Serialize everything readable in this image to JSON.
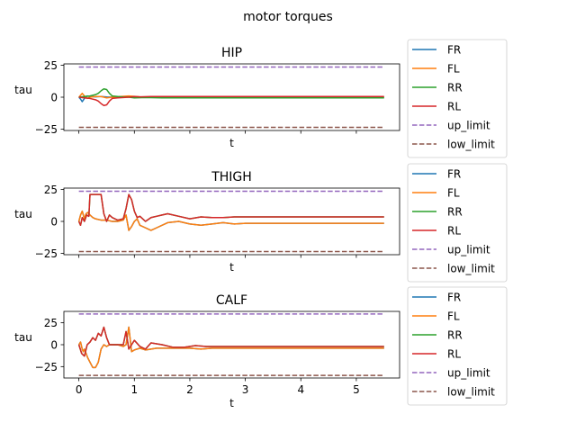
{
  "chart_data": {
    "suptitle": "motor torques",
    "legend_placement": "right of each panel",
    "legend_entries": [
      "FR",
      "FL",
      "RR",
      "RL",
      "up_limit",
      "low_limit"
    ],
    "colors": {
      "FR": "#1f77b4",
      "FL": "#ff7f0e",
      "RR": "#2ca02c",
      "RL": "#d62728",
      "up_limit": "#9467bd",
      "low_limit": "#8c564b"
    },
    "subplots": [
      {
        "type": "line",
        "title": "HIP",
        "xlabel": "t",
        "ylabel": "tau",
        "xlim": [
          -0.27,
          5.78
        ],
        "ylim": [
          -26,
          26
        ],
        "xticks": [
          0,
          1,
          2,
          3,
          4,
          5
        ],
        "show_xticklabels": false,
        "yticks": [
          -25,
          0,
          25
        ],
        "limits": {
          "up_limit": 23.5,
          "low_limit": -23.5
        },
        "series": [
          {
            "name": "FR",
            "x": [
              0,
              0.03,
              0.06,
              0.1,
              0.15,
              0.2,
              0.3,
              0.4,
              0.5,
              0.6,
              0.75,
              0.9,
              1.1,
              1.5,
              2,
              3,
              4,
              5,
              5.5
            ],
            "y": [
              0,
              -1.5,
              -3.5,
              -1,
              1,
              0.5,
              0.3,
              0.5,
              0.2,
              0.1,
              0.3,
              0.2,
              0,
              0,
              0,
              0,
              0,
              0,
              0
            ]
          },
          {
            "name": "FL",
            "x": [
              0,
              0.03,
              0.06,
              0.1,
              0.15,
              0.2,
              0.3,
              0.4,
              0.5,
              0.6,
              0.75,
              0.9,
              1.1,
              1.5,
              2,
              3,
              4,
              5,
              5.5
            ],
            "y": [
              0,
              1.5,
              3,
              1,
              -1,
              0,
              0.5,
              0.5,
              -0.5,
              0,
              0.5,
              1,
              0.3,
              0,
              0,
              0,
              0,
              0,
              0
            ]
          },
          {
            "name": "RR",
            "x": [
              0,
              0.1,
              0.2,
              0.3,
              0.35,
              0.4,
              0.45,
              0.5,
              0.55,
              0.6,
              0.7,
              0.8,
              0.9,
              1.0,
              1.2,
              1.5,
              2,
              3,
              4,
              5,
              5.5
            ],
            "y": [
              0,
              0.5,
              1,
              2,
              3,
              5,
              6.5,
              6,
              3,
              1,
              0.5,
              0.2,
              0,
              -0.5,
              -0.3,
              -0.5,
              -0.5,
              -0.5,
              -0.5,
              -0.5,
              -0.5
            ]
          },
          {
            "name": "RL",
            "x": [
              0,
              0.1,
              0.2,
              0.3,
              0.35,
              0.4,
              0.45,
              0.5,
              0.55,
              0.6,
              0.7,
              0.8,
              0.9,
              1.0,
              1.1,
              1.3,
              1.5,
              2,
              3,
              4,
              5,
              5.5
            ],
            "y": [
              0,
              -0.5,
              -1,
              -2,
              -3,
              -5,
              -6.5,
              -6,
              -3,
              -1,
              -0.5,
              -0.3,
              0,
              0.5,
              0.3,
              0.5,
              0.5,
              0.5,
              0.5,
              0.5,
              0.5,
              0.5
            ]
          },
          {
            "name": "up_limit",
            "x": [
              0,
              5.5
            ],
            "y": [
              23.5,
              23.5
            ],
            "dashed": true
          },
          {
            "name": "low_limit",
            "x": [
              0,
              5.5
            ],
            "y": [
              -23.5,
              -23.5
            ],
            "dashed": true
          }
        ]
      },
      {
        "type": "line",
        "title": "THIGH",
        "xlabel": "t",
        "ylabel": "tau",
        "xlim": [
          -0.27,
          5.78
        ],
        "ylim": [
          -26,
          26
        ],
        "xticks": [
          0,
          1,
          2,
          3,
          4,
          5
        ],
        "show_xticklabels": false,
        "yticks": [
          -25,
          0,
          25
        ],
        "limits": {
          "up_limit": 23.5,
          "low_limit": -23.5
        },
        "series": [
          {
            "name": "FR",
            "x": [
              0,
              0.03,
              0.06,
              0.1,
              0.13,
              0.16,
              0.2,
              0.25,
              0.3,
              0.4,
              0.5,
              0.6,
              0.7,
              0.8,
              0.85,
              0.9,
              0.95,
              1.0,
              1.05,
              1.1,
              1.2,
              1.3,
              1.4,
              1.6,
              1.8,
              2.0,
              2.2,
              2.4,
              2.6,
              2.8,
              3.0,
              3.2,
              3.5,
              4,
              4.5,
              5,
              5.5
            ],
            "y": [
              0,
              5,
              8,
              2,
              6,
              7,
              5,
              3,
              2,
              1,
              1,
              0,
              0,
              1,
              5,
              -7,
              -4,
              0,
              2,
              -3,
              -5,
              -7,
              -5,
              -1,
              0,
              -2,
              -3,
              -2,
              -1,
              -2,
              -1.5,
              -1.5,
              -1.5,
              -1.5,
              -1.5,
              -1.5,
              -1.5
            ]
          },
          {
            "name": "FL",
            "x": [
              0,
              0.03,
              0.06,
              0.1,
              0.13,
              0.16,
              0.2,
              0.25,
              0.3,
              0.4,
              0.5,
              0.6,
              0.7,
              0.8,
              0.85,
              0.9,
              0.95,
              1.0,
              1.05,
              1.1,
              1.2,
              1.3,
              1.4,
              1.6,
              1.8,
              2.0,
              2.2,
              2.4,
              2.6,
              2.8,
              3.0,
              3.2,
              3.5,
              4,
              4.5,
              5,
              5.5
            ],
            "y": [
              0,
              5,
              8,
              2,
              6,
              7,
              5,
              3,
              2,
              1,
              1,
              0,
              0,
              1,
              5,
              -7,
              -4,
              0,
              2,
              -3,
              -5,
              -7,
              -5,
              -1,
              0,
              -2,
              -3,
              -2,
              -1,
              -2,
              -1.5,
              -1.5,
              -1.5,
              -1.5,
              -1.5,
              -1.5,
              -1.5
            ]
          },
          {
            "name": "RR",
            "x": [
              0,
              0.03,
              0.06,
              0.1,
              0.14,
              0.18,
              0.2,
              0.4,
              0.45,
              0.5,
              0.55,
              0.6,
              0.65,
              0.7,
              0.8,
              0.85,
              0.9,
              0.95,
              1.0,
              1.05,
              1.1,
              1.2,
              1.3,
              1.4,
              1.5,
              1.6,
              1.8,
              2.0,
              2.2,
              2.4,
              2.6,
              2.8,
              3.0,
              3.5,
              4,
              5,
              5.5
            ],
            "y": [
              0,
              -3,
              3,
              0,
              5,
              4,
              21,
              21,
              6,
              0,
              5,
              3,
              2,
              1,
              2,
              10,
              21,
              17,
              8,
              3,
              4,
              0,
              3,
              4,
              5,
              6,
              4,
              2,
              3.5,
              3,
              3,
              3.5,
              3.5,
              3.5,
              3.5,
              3.5,
              3.5
            ]
          },
          {
            "name": "RL",
            "x": [
              0,
              0.03,
              0.06,
              0.1,
              0.14,
              0.18,
              0.2,
              0.4,
              0.45,
              0.5,
              0.55,
              0.6,
              0.65,
              0.7,
              0.8,
              0.85,
              0.9,
              0.95,
              1.0,
              1.05,
              1.1,
              1.2,
              1.3,
              1.4,
              1.5,
              1.6,
              1.8,
              2.0,
              2.2,
              2.4,
              2.6,
              2.8,
              3.0,
              3.5,
              4,
              5,
              5.5
            ],
            "y": [
              0,
              -3,
              3,
              0,
              5,
              4,
              21,
              21,
              6,
              0,
              5,
              3,
              2,
              1,
              2,
              10,
              21,
              17,
              8,
              3,
              4,
              0,
              3,
              4,
              5,
              6,
              4,
              2,
              3.5,
              3,
              3,
              3.5,
              3.5,
              3.5,
              3.5,
              3.5,
              3.5
            ]
          },
          {
            "name": "up_limit",
            "x": [
              0,
              5.5
            ],
            "y": [
              23.5,
              23.5
            ],
            "dashed": true
          },
          {
            "name": "low_limit",
            "x": [
              0,
              5.5
            ],
            "y": [
              -23.5,
              -23.5
            ],
            "dashed": true
          }
        ]
      },
      {
        "type": "line",
        "title": "CALF",
        "xlabel": "t",
        "ylabel": "tau",
        "xlim": [
          -0.27,
          5.78
        ],
        "ylim": [
          -38,
          38
        ],
        "xticks": [
          0,
          1,
          2,
          3,
          4,
          5
        ],
        "show_xticklabels": true,
        "yticks": [
          -25,
          0,
          25
        ],
        "limits": {
          "up_limit": 35,
          "low_limit": -35
        },
        "series": [
          {
            "name": "FR",
            "x": [
              0,
              0.03,
              0.06,
              0.08,
              0.1,
              0.13,
              0.16,
              0.2,
              0.25,
              0.3,
              0.35,
              0.4,
              0.45,
              0.5,
              0.55,
              0.6,
              0.7,
              0.8,
              0.85,
              0.9,
              0.95,
              1.0,
              1.1,
              1.2,
              1.4,
              1.6,
              1.8,
              2.0,
              2.2,
              2.4,
              2.6,
              2.8,
              3.0,
              3.5,
              4,
              5,
              5.5
            ],
            "y": [
              0,
              3,
              -5,
              -8,
              -5,
              -10,
              -15,
              -20,
              -26,
              -26,
              -20,
              -5,
              0,
              -2,
              0,
              0,
              0,
              -2,
              0,
              20,
              -8,
              -6,
              -4,
              -6,
              -4,
              -4,
              -4,
              -4,
              -5,
              -4,
              -4,
              -4,
              -4,
              -4,
              -4,
              -4,
              -4
            ]
          },
          {
            "name": "FL",
            "x": [
              0,
              0.03,
              0.06,
              0.08,
              0.1,
              0.13,
              0.16,
              0.2,
              0.25,
              0.3,
              0.35,
              0.4,
              0.45,
              0.5,
              0.55,
              0.6,
              0.7,
              0.8,
              0.85,
              0.9,
              0.95,
              1.0,
              1.1,
              1.2,
              1.4,
              1.6,
              1.8,
              2.0,
              2.2,
              2.4,
              2.6,
              2.8,
              3.0,
              3.5,
              4,
              5,
              5.5
            ],
            "y": [
              0,
              3,
              -5,
              -8,
              -5,
              -10,
              -15,
              -20,
              -26,
              -26,
              -20,
              -5,
              0,
              -2,
              0,
              0,
              0,
              -2,
              0,
              20,
              -8,
              -6,
              -4,
              -6,
              -4,
              -4,
              -4,
              -4,
              -5,
              -4,
              -4,
              -4,
              -4,
              -4,
              -4,
              -4,
              -4
            ]
          },
          {
            "name": "RR",
            "x": [
              0,
              0.05,
              0.1,
              0.15,
              0.2,
              0.25,
              0.3,
              0.35,
              0.4,
              0.45,
              0.5,
              0.55,
              0.6,
              0.7,
              0.8,
              0.85,
              0.9,
              0.95,
              1.0,
              1.1,
              1.2,
              1.3,
              1.5,
              1.7,
              1.9,
              2.1,
              2.3,
              2.6,
              3.0,
              3.5,
              4,
              5,
              5.5
            ],
            "y": [
              0,
              -10,
              -13,
              0,
              3,
              8,
              5,
              13,
              10,
              20,
              8,
              0,
              0,
              0,
              0,
              15,
              -5,
              0,
              5,
              -2,
              -5,
              2,
              0,
              -3,
              -3,
              -1,
              -2,
              -2,
              -2,
              -2,
              -2,
              -2,
              -2
            ]
          },
          {
            "name": "RL",
            "x": [
              0,
              0.05,
              0.1,
              0.15,
              0.2,
              0.25,
              0.3,
              0.35,
              0.4,
              0.45,
              0.5,
              0.55,
              0.6,
              0.7,
              0.8,
              0.85,
              0.9,
              0.95,
              1.0,
              1.1,
              1.2,
              1.3,
              1.5,
              1.7,
              1.9,
              2.1,
              2.3,
              2.6,
              3.0,
              3.5,
              4,
              5,
              5.5
            ],
            "y": [
              0,
              -10,
              -13,
              0,
              3,
              8,
              5,
              13,
              10,
              20,
              8,
              0,
              0,
              0,
              0,
              15,
              -5,
              0,
              5,
              -2,
              -5,
              2,
              0,
              -3,
              -3,
              -1,
              -2,
              -2,
              -2,
              -2,
              -2,
              -2,
              -2
            ]
          },
          {
            "name": "up_limit",
            "x": [
              0,
              5.5
            ],
            "y": [
              35,
              35
            ],
            "dashed": true
          },
          {
            "name": "low_limit",
            "x": [
              0,
              5.5
            ],
            "y": [
              -35,
              -35
            ],
            "dashed": true
          }
        ]
      }
    ]
  }
}
